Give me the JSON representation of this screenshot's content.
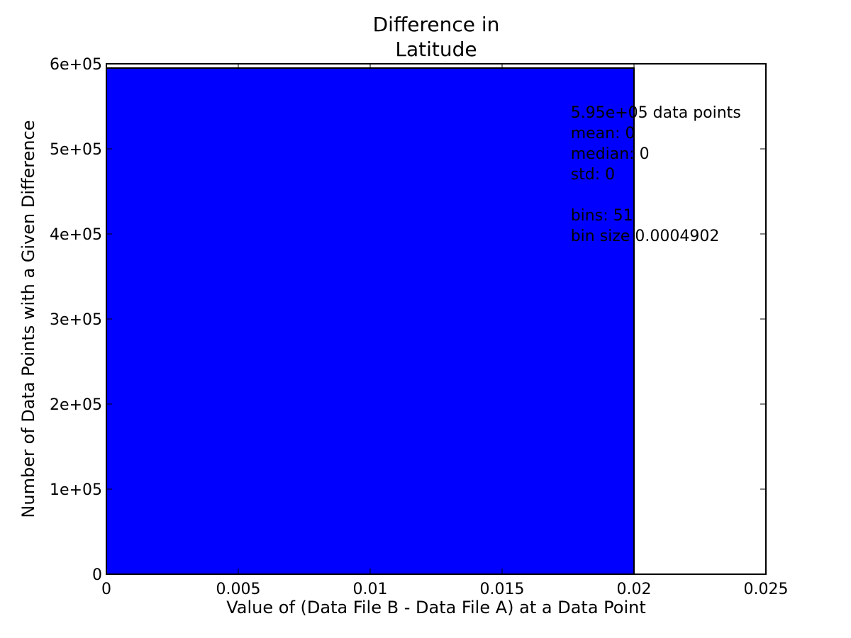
{
  "chart_data": {
    "type": "bar",
    "title_lines": [
      "Difference in",
      "Latitude"
    ],
    "xlabel": "Value of (Data File B - Data File A) at a Data Point",
    "ylabel": "Number of Data Points with a Given Difference",
    "xlim": [
      0,
      0.025
    ],
    "ylim": [
      0,
      600000
    ],
    "x_ticks": [
      0,
      0.005,
      0.01,
      0.015,
      0.02,
      0.025
    ],
    "x_tick_labels": [
      "0",
      "0.005",
      "0.01",
      "0.015",
      "0.02",
      "0.025"
    ],
    "y_ticks": [
      0,
      100000,
      200000,
      300000,
      400000,
      500000,
      600000
    ],
    "y_tick_labels": [
      "0",
      "1e+05",
      "2e+05",
      "3e+05",
      "4e+05",
      "5e+05",
      "6e+05"
    ],
    "bars": [
      {
        "x_start": 0,
        "x_end": 0.02,
        "value": 595000
      }
    ],
    "bar_color": "#0000ff",
    "grid": false,
    "annotation": {
      "anchor": [
        0.0176,
        530000
      ],
      "lines": [
        "5.95e+05 data points",
        "mean: 0",
        "median: 0",
        "std: 0",
        "",
        "bins: 51",
        "bin size 0.0004902"
      ]
    }
  }
}
